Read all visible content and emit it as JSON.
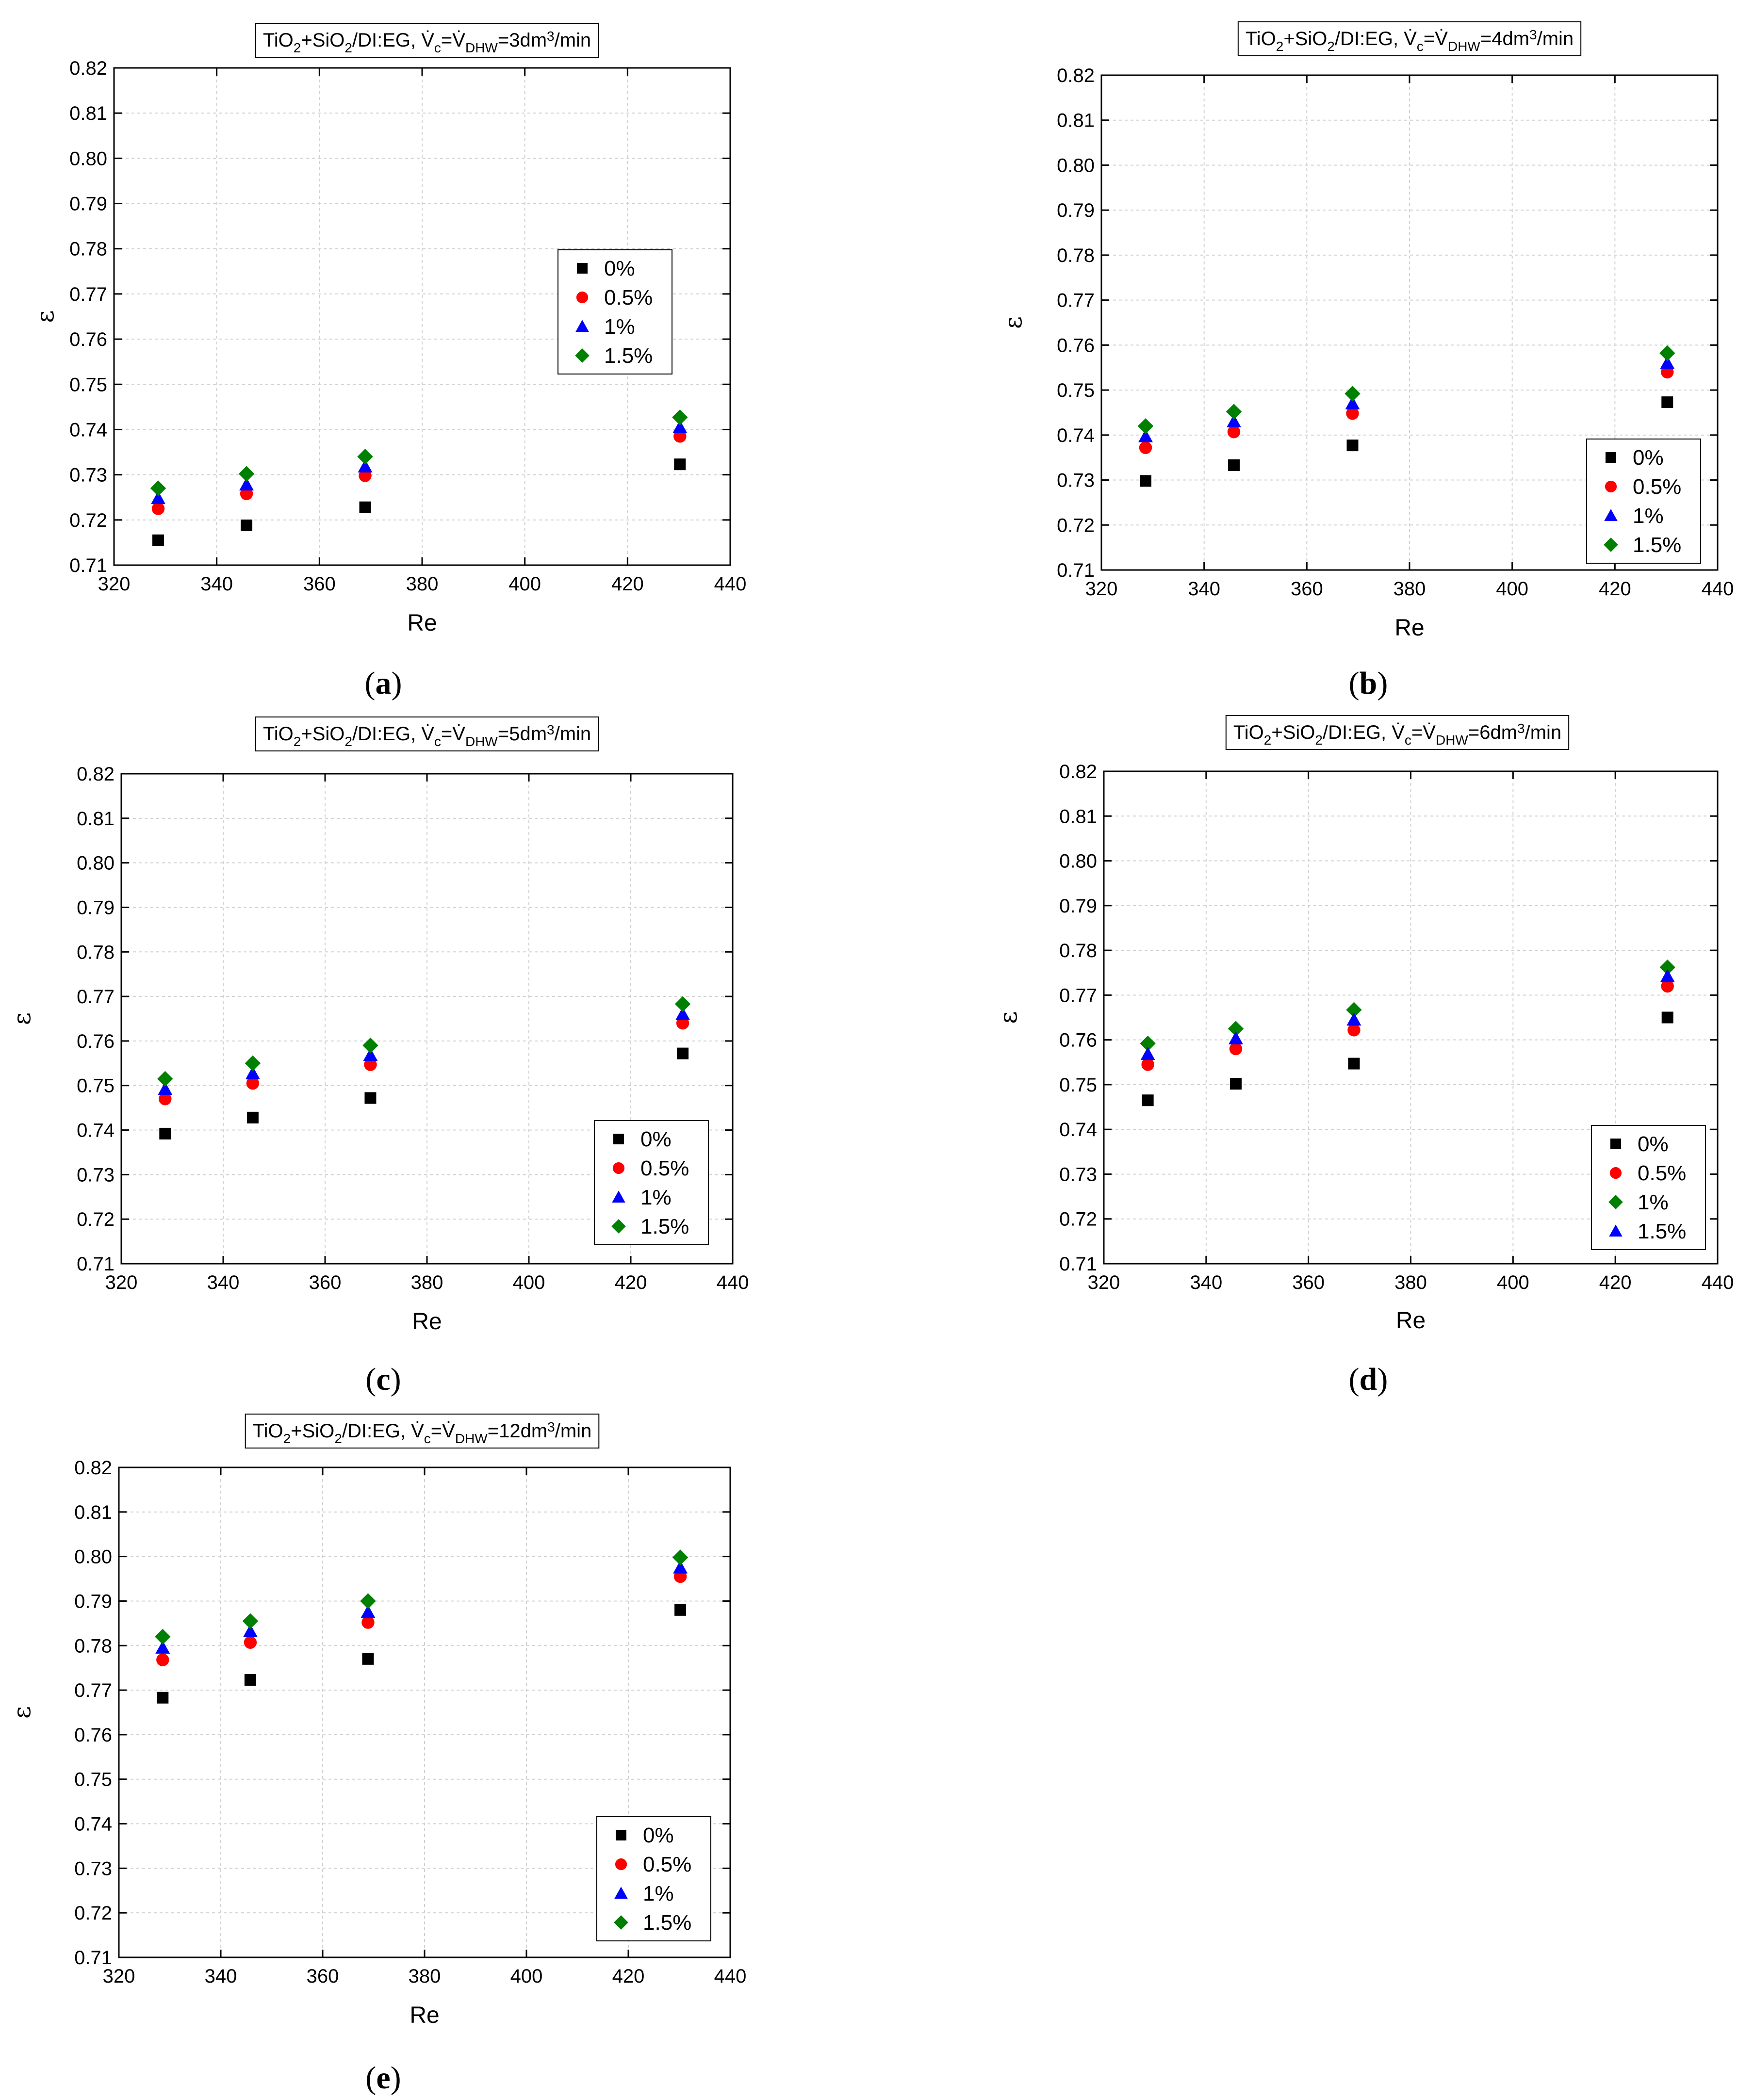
{
  "figure": {
    "panels": [
      {
        "label_open": "(",
        "label_letter": "a",
        "label_close": ")",
        "title": {
          "prefix": "TiO",
          "s1": "2",
          "mid": "+SiO",
          "s2": "2",
          "suffix": "/DI:EG, ",
          "v1": "V",
          "v1_sub": "c",
          "eq": "=",
          "v2": "V",
          "v2_sub": "DHW",
          "rate": "=3dm",
          "rate_sup": "3",
          "unit": "/min"
        }
      },
      {
        "label_open": "(",
        "label_letter": "b",
        "label_close": ")",
        "title": {
          "prefix": "TiO",
          "s1": "2",
          "mid": "+SiO",
          "s2": "2",
          "suffix": "/DI:EG, ",
          "v1": "V",
          "v1_sub": "c",
          "eq": "=",
          "v2": "V",
          "v2_sub": "DHW",
          "rate": "=4dm",
          "rate_sup": "3",
          "unit": "/min"
        }
      },
      {
        "label_open": "(",
        "label_letter": "c",
        "label_close": ")",
        "title": {
          "prefix": "TiO",
          "s1": "2",
          "mid": "+SiO",
          "s2": "2",
          "suffix": "/DI:EG, ",
          "v1": "V",
          "v1_sub": "c",
          "eq": "=",
          "v2": "V",
          "v2_sub": "DHW",
          "rate": "=5dm",
          "rate_sup": "3",
          "unit": "/min"
        }
      },
      {
        "label_open": "(",
        "label_letter": "d",
        "label_close": ")",
        "title": {
          "prefix": "TiO",
          "s1": "2",
          "mid": "+SiO",
          "s2": "2",
          "suffix": "/DI:EG, ",
          "v1": "V",
          "v1_sub": "c",
          "eq": "=",
          "v2": "V",
          "v2_sub": "DHW",
          "rate": "=6dm",
          "rate_sup": "3",
          "unit": "/min"
        }
      },
      {
        "label_open": "(",
        "label_letter": "e",
        "label_close": ")",
        "title": {
          "prefix": "TiO",
          "s1": "2",
          "mid": "+SiO",
          "s2": "2",
          "suffix": "/DI:EG, ",
          "v1": "V",
          "v1_sub": "c",
          "eq": "=",
          "v2": "V",
          "v2_sub": "DHW",
          "rate": "=12dm",
          "rate_sup": "3",
          "unit": "/min"
        }
      }
    ]
  },
  "chart_data": [
    {
      "type": "scatter",
      "title": "TiO2+SiO2/DI:EG, V̇c=V̇DHW=3dm3/min",
      "xlabel": "Re",
      "ylabel": "ε",
      "xlim": [
        320,
        440
      ],
      "ylim": [
        0.71,
        0.82
      ],
      "xticks": [
        "320",
        "340",
        "360",
        "380",
        "400",
        "420",
        "440"
      ],
      "yticks": [
        "0.71",
        "0.72",
        "0.73",
        "0.74",
        "0.75",
        "0.76",
        "0.77",
        "0.78",
        "0.79",
        "0.80",
        "0.81",
        "0.82"
      ],
      "grid": true,
      "legend_position": "center-right",
      "x": [
        328.6,
        345.8,
        368.9,
        430.2
      ],
      "series": [
        {
          "name": "0%",
          "marker": "square",
          "color": "#000000",
          "values": [
            0.7155,
            0.7188,
            0.7228,
            0.7323
          ]
        },
        {
          "name": "0.5%",
          "marker": "circle",
          "color": "#ff0000",
          "values": [
            0.7225,
            0.7258,
            0.7298,
            0.7385
          ]
        },
        {
          "name": "1%",
          "marker": "triangle",
          "color": "#0000ff",
          "values": [
            0.7248,
            0.7278,
            0.7318,
            0.7405
          ]
        },
        {
          "name": "1.5%",
          "marker": "diamond",
          "color": "#008000",
          "values": [
            0.727,
            0.7302,
            0.734,
            0.7427
          ]
        }
      ]
    },
    {
      "type": "scatter",
      "title": "TiO2+SiO2/DI:EG, V̇c=V̇DHW=4dm3/min",
      "xlabel": "Re",
      "ylabel": "ε",
      "xlim": [
        320,
        440
      ],
      "ylim": [
        0.71,
        0.82
      ],
      "xticks": [
        "320",
        "340",
        "360",
        "380",
        "400",
        "420",
        "440"
      ],
      "yticks": [
        "0.71",
        "0.72",
        "0.73",
        "0.74",
        "0.75",
        "0.76",
        "0.77",
        "0.78",
        "0.79",
        "0.80",
        "0.81",
        "0.82"
      ],
      "grid": true,
      "legend_position": "bottom-right",
      "x": [
        328.6,
        345.8,
        368.9,
        430.2
      ],
      "series": [
        {
          "name": "0%",
          "marker": "square",
          "color": "#000000",
          "values": [
            0.7298,
            0.7333,
            0.7377,
            0.7473
          ]
        },
        {
          "name": "0.5%",
          "marker": "circle",
          "color": "#ff0000",
          "values": [
            0.7372,
            0.7407,
            0.7448,
            0.754
          ]
        },
        {
          "name": "1%",
          "marker": "triangle",
          "color": "#0000ff",
          "values": [
            0.7397,
            0.743,
            0.747,
            0.756
          ]
        },
        {
          "name": "1.5%",
          "marker": "diamond",
          "color": "#008000",
          "values": [
            0.742,
            0.7452,
            0.7492,
            0.7582
          ]
        }
      ]
    },
    {
      "type": "scatter",
      "title": "TiO2+SiO2/DI:EG, V̇c=V̇DHW=5dm3/min",
      "xlabel": "Re",
      "ylabel": "ε",
      "xlim": [
        320,
        440
      ],
      "ylim": [
        0.71,
        0.82
      ],
      "xticks": [
        "320",
        "340",
        "360",
        "380",
        "400",
        "420",
        "440"
      ],
      "yticks": [
        "0.71",
        "0.72",
        "0.73",
        "0.74",
        "0.75",
        "0.76",
        "0.77",
        "0.78",
        "0.79",
        "0.80",
        "0.81",
        "0.82"
      ],
      "grid": true,
      "legend_position": "bottom-right",
      "x": [
        328.6,
        345.8,
        368.9,
        430.2
      ],
      "series": [
        {
          "name": "0%",
          "marker": "square",
          "color": "#000000",
          "values": [
            0.7392,
            0.7428,
            0.7472,
            0.7572
          ]
        },
        {
          "name": "0.5%",
          "marker": "circle",
          "color": "#ff0000",
          "values": [
            0.747,
            0.7505,
            0.7547,
            0.764
          ]
        },
        {
          "name": "1%",
          "marker": "triangle",
          "color": "#0000ff",
          "values": [
            0.7492,
            0.7527,
            0.7568,
            0.766
          ]
        },
        {
          "name": "1.5%",
          "marker": "diamond",
          "color": "#008000",
          "values": [
            0.7515,
            0.755,
            0.759,
            0.7683
          ]
        }
      ]
    },
    {
      "type": "scatter",
      "title": "TiO2+SiO2/DI:EG, V̇c=V̇DHW=6dm3/min",
      "xlabel": "Re",
      "ylabel": "ε",
      "xlim": [
        320,
        440
      ],
      "ylim": [
        0.71,
        0.82
      ],
      "xticks": [
        "320",
        "340",
        "360",
        "380",
        "400",
        "420",
        "440"
      ],
      "yticks": [
        "0.71",
        "0.72",
        "0.73",
        "0.74",
        "0.75",
        "0.76",
        "0.77",
        "0.78",
        "0.79",
        "0.80",
        "0.81",
        "0.82"
      ],
      "grid": true,
      "legend_position": "bottom-right",
      "legend_order_note": "legend lists 0%, 0.5%, 1% (green diamond), 1.5% (blue triangle)",
      "x": [
        328.6,
        345.8,
        368.9,
        430.2
      ],
      "series": [
        {
          "name": "0%",
          "marker": "square",
          "color": "#000000",
          "values": [
            0.7465,
            0.7502,
            0.7547,
            0.765
          ]
        },
        {
          "name": "0.5%",
          "marker": "circle",
          "color": "#ff0000",
          "values": [
            0.7545,
            0.758,
            0.7622,
            0.772
          ]
        },
        {
          "name": "1%",
          "marker": "diamond",
          "color": "#008000",
          "values": [
            0.7592,
            0.7625,
            0.7667,
            0.7762
          ]
        },
        {
          "name": "1.5%",
          "marker": "triangle",
          "color": "#0000ff",
          "values": [
            0.7568,
            0.7603,
            0.7645,
            0.7742
          ]
        }
      ]
    },
    {
      "type": "scatter",
      "title": "TiO2+SiO2/DI:EG, V̇c=V̇DHW=12dm3/min",
      "xlabel": "Re",
      "ylabel": "ε",
      "xlim": [
        320,
        440
      ],
      "ylim": [
        0.71,
        0.82
      ],
      "xticks": [
        "320",
        "340",
        "360",
        "380",
        "400",
        "420",
        "440"
      ],
      "yticks": [
        "0.71",
        "0.72",
        "0.73",
        "0.74",
        "0.75",
        "0.76",
        "0.77",
        "0.78",
        "0.79",
        "0.80",
        "0.81",
        "0.82"
      ],
      "grid": true,
      "legend_position": "bottom-right",
      "x": [
        328.6,
        345.8,
        368.9,
        430.2
      ],
      "series": [
        {
          "name": "0%",
          "marker": "square",
          "color": "#000000",
          "values": [
            0.7683,
            0.7723,
            0.777,
            0.788
          ]
        },
        {
          "name": "0.5%",
          "marker": "circle",
          "color": "#ff0000",
          "values": [
            0.7768,
            0.7807,
            0.7852,
            0.7955
          ]
        },
        {
          "name": "1%",
          "marker": "triangle",
          "color": "#0000ff",
          "values": [
            0.7795,
            0.7832,
            0.7875,
            0.7975
          ]
        },
        {
          "name": "1.5%",
          "marker": "diamond",
          "color": "#008000",
          "values": [
            0.782,
            0.7855,
            0.79,
            0.7998
          ]
        }
      ]
    }
  ]
}
